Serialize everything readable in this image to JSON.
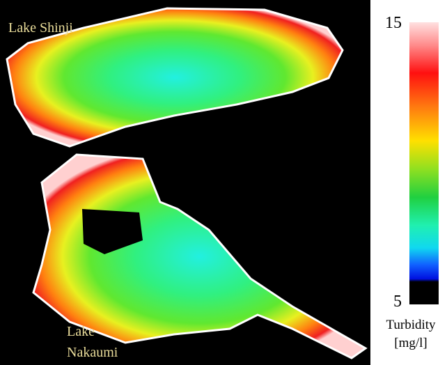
{
  "map": {
    "labels": {
      "shinji": "Lake Shinji",
      "nakaumi_1": "Lake",
      "nakaumi_2": "Nakaumi"
    }
  },
  "colorbar": {
    "max": "15",
    "min": "5",
    "title": "Turbidity",
    "unit": "[mg/l]"
  }
}
